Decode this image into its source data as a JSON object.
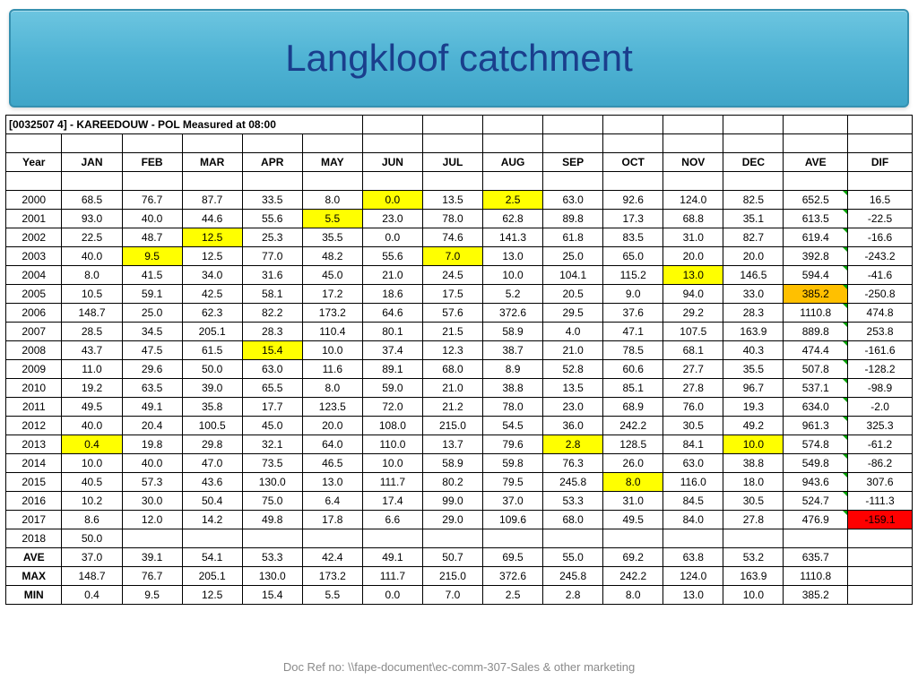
{
  "title": "Langkloof catchment",
  "station_info": "[0032507 4] - KAREEDOUW - POL   Measured at 08:00",
  "headers": [
    "Year",
    "JAN",
    "FEB",
    "MAR",
    "APR",
    "MAY",
    "JUN",
    "JUL",
    "AUG",
    "SEP",
    "OCT",
    "NOV",
    "DEC",
    "AVE",
    "DIF"
  ],
  "highlight_colors": {
    "yellow": "#ffff00",
    "orange": "#ffc000",
    "red": "#ff0000"
  },
  "rows": [
    {
      "year": "2000",
      "v": [
        "68.5",
        "76.7",
        "87.7",
        "33.5",
        "8.0",
        "0.0",
        "13.5",
        "2.5",
        "63.0",
        "92.6",
        "124.0",
        "82.5",
        "652.5",
        "16.5"
      ],
      "hl": {
        "5": "yellow",
        "7": "yellow"
      }
    },
    {
      "year": "2001",
      "v": [
        "93.0",
        "40.0",
        "44.6",
        "55.6",
        "5.5",
        "23.0",
        "78.0",
        "62.8",
        "89.8",
        "17.3",
        "68.8",
        "35.1",
        "613.5",
        "-22.5"
      ],
      "hl": {
        "4": "yellow"
      }
    },
    {
      "year": "2002",
      "v": [
        "22.5",
        "48.7",
        "12.5",
        "25.3",
        "35.5",
        "0.0",
        "74.6",
        "141.3",
        "61.8",
        "83.5",
        "31.0",
        "82.7",
        "619.4",
        "-16.6"
      ],
      "hl": {
        "2": "yellow"
      }
    },
    {
      "year": "2003",
      "v": [
        "40.0",
        "9.5",
        "12.5",
        "77.0",
        "48.2",
        "55.6",
        "7.0",
        "13.0",
        "25.0",
        "65.0",
        "20.0",
        "20.0",
        "392.8",
        "-243.2"
      ],
      "hl": {
        "1": "yellow",
        "6": "yellow"
      }
    },
    {
      "year": "2004",
      "v": [
        "8.0",
        "41.5",
        "34.0",
        "31.6",
        "45.0",
        "21.0",
        "24.5",
        "10.0",
        "104.1",
        "115.2",
        "13.0",
        "146.5",
        "594.4",
        "-41.6"
      ],
      "hl": {
        "10": "yellow"
      }
    },
    {
      "year": "2005",
      "v": [
        "10.5",
        "59.1",
        "42.5",
        "58.1",
        "17.2",
        "18.6",
        "17.5",
        "5.2",
        "20.5",
        "9.0",
        "94.0",
        "33.0",
        "385.2",
        "-250.8"
      ],
      "hl": {
        "12": "orange"
      }
    },
    {
      "year": "2006",
      "v": [
        "148.7",
        "25.0",
        "62.3",
        "82.2",
        "173.2",
        "64.6",
        "57.6",
        "372.6",
        "29.5",
        "37.6",
        "29.2",
        "28.3",
        "1110.8",
        "474.8"
      ]
    },
    {
      "year": "2007",
      "v": [
        "28.5",
        "34.5",
        "205.1",
        "28.3",
        "110.4",
        "80.1",
        "21.5",
        "58.9",
        "4.0",
        "47.1",
        "107.5",
        "163.9",
        "889.8",
        "253.8"
      ]
    },
    {
      "year": "2008",
      "v": [
        "43.7",
        "47.5",
        "61.5",
        "15.4",
        "10.0",
        "37.4",
        "12.3",
        "38.7",
        "21.0",
        "78.5",
        "68.1",
        "40.3",
        "474.4",
        "-161.6"
      ],
      "hl": {
        "3": "yellow"
      }
    },
    {
      "year": "2009",
      "v": [
        "11.0",
        "29.6",
        "50.0",
        "63.0",
        "11.6",
        "89.1",
        "68.0",
        "8.9",
        "52.8",
        "60.6",
        "27.7",
        "35.5",
        "507.8",
        "-128.2"
      ]
    },
    {
      "year": "2010",
      "v": [
        "19.2",
        "63.5",
        "39.0",
        "65.5",
        "8.0",
        "59.0",
        "21.0",
        "38.8",
        "13.5",
        "85.1",
        "27.8",
        "96.7",
        "537.1",
        "-98.9"
      ]
    },
    {
      "year": "2011",
      "v": [
        "49.5",
        "49.1",
        "35.8",
        "17.7",
        "123.5",
        "72.0",
        "21.2",
        "78.0",
        "23.0",
        "68.9",
        "76.0",
        "19.3",
        "634.0",
        "-2.0"
      ]
    },
    {
      "year": "2012",
      "v": [
        "40.0",
        "20.4",
        "100.5",
        "45.0",
        "20.0",
        "108.0",
        "215.0",
        "54.5",
        "36.0",
        "242.2",
        "30.5",
        "49.2",
        "961.3",
        "325.3"
      ]
    },
    {
      "year": "2013",
      "v": [
        "0.4",
        "19.8",
        "29.8",
        "32.1",
        "64.0",
        "110.0",
        "13.7",
        "79.6",
        "2.8",
        "128.5",
        "84.1",
        "10.0",
        "574.8",
        "-61.2"
      ],
      "hl": {
        "0": "yellow",
        "8": "yellow",
        "11": "yellow"
      }
    },
    {
      "year": "2014",
      "v": [
        "10.0",
        "40.0",
        "47.0",
        "73.5",
        "46.5",
        "10.0",
        "58.9",
        "59.8",
        "76.3",
        "26.0",
        "63.0",
        "38.8",
        "549.8",
        "-86.2"
      ]
    },
    {
      "year": "2015",
      "v": [
        "40.5",
        "57.3",
        "43.6",
        "130.0",
        "13.0",
        "111.7",
        "80.2",
        "79.5",
        "245.8",
        "8.0",
        "116.0",
        "18.0",
        "943.6",
        "307.6"
      ],
      "hl": {
        "9": "yellow"
      }
    },
    {
      "year": "2016",
      "v": [
        "10.2",
        "30.0",
        "50.4",
        "75.0",
        "6.4",
        "17.4",
        "99.0",
        "37.0",
        "53.3",
        "31.0",
        "84.5",
        "30.5",
        "524.7",
        "-111.3"
      ]
    },
    {
      "year": "2017",
      "v": [
        "8.6",
        "12.0",
        "14.2",
        "49.8",
        "17.8",
        "6.6",
        "29.0",
        "109.6",
        "68.0",
        "49.5",
        "84.0",
        "27.8",
        "476.9",
        "-159.1"
      ],
      "hl": {
        "13": "red"
      }
    },
    {
      "year": "2018",
      "v": [
        "50.0",
        "",
        "",
        "",
        "",
        "",
        "",
        "",
        "",
        "",
        "",
        "",
        "",
        ""
      ]
    }
  ],
  "summary": [
    {
      "label": "AVE",
      "v": [
        "37.0",
        "39.1",
        "54.1",
        "53.3",
        "42.4",
        "49.1",
        "50.7",
        "69.5",
        "55.0",
        "69.2",
        "63.8",
        "53.2",
        "635.7",
        ""
      ]
    },
    {
      "label": "MAX",
      "v": [
        "148.7",
        "76.7",
        "205.1",
        "130.0",
        "173.2",
        "111.7",
        "215.0",
        "372.6",
        "245.8",
        "242.2",
        "124.0",
        "163.9",
        "1110.8",
        ""
      ]
    },
    {
      "label": "MIN",
      "v": [
        "0.4",
        "9.5",
        "12.5",
        "15.4",
        "5.5",
        "0.0",
        "7.0",
        "2.5",
        "2.8",
        "8.0",
        "13.0",
        "10.0",
        "385.2",
        ""
      ]
    }
  ],
  "footer": "Doc Ref no: \\\\fape-document\\ec-comm-307-Sales & other marketing"
}
